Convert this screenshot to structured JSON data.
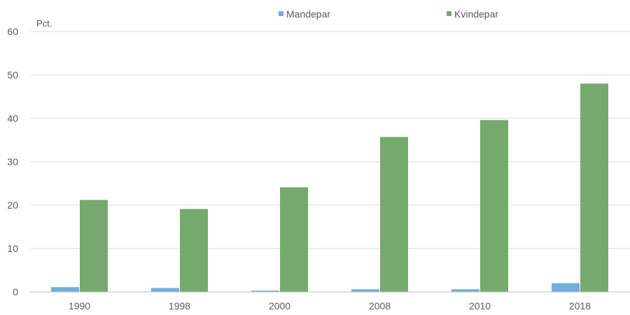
{
  "chart_data": {
    "type": "bar",
    "title": "",
    "xlabel": "",
    "ylabel": "Pct.",
    "ylim": [
      0,
      60
    ],
    "yticks": [
      0,
      10,
      20,
      30,
      40,
      50,
      60
    ],
    "grid": true,
    "legend_position": "top-center",
    "categories": [
      "1990",
      "1998",
      "2000",
      "2008",
      "2010",
      "2018"
    ],
    "series": [
      {
        "name": "Mandepar",
        "color": "#70ADE0",
        "values": [
          1.1,
          0.9,
          0.3,
          0.6,
          0.6,
          2.0
        ]
      },
      {
        "name": "Kvindepar",
        "color": "#76A96E",
        "values": [
          21.2,
          19.1,
          24.1,
          35.7,
          39.6,
          48.0
        ]
      }
    ]
  }
}
